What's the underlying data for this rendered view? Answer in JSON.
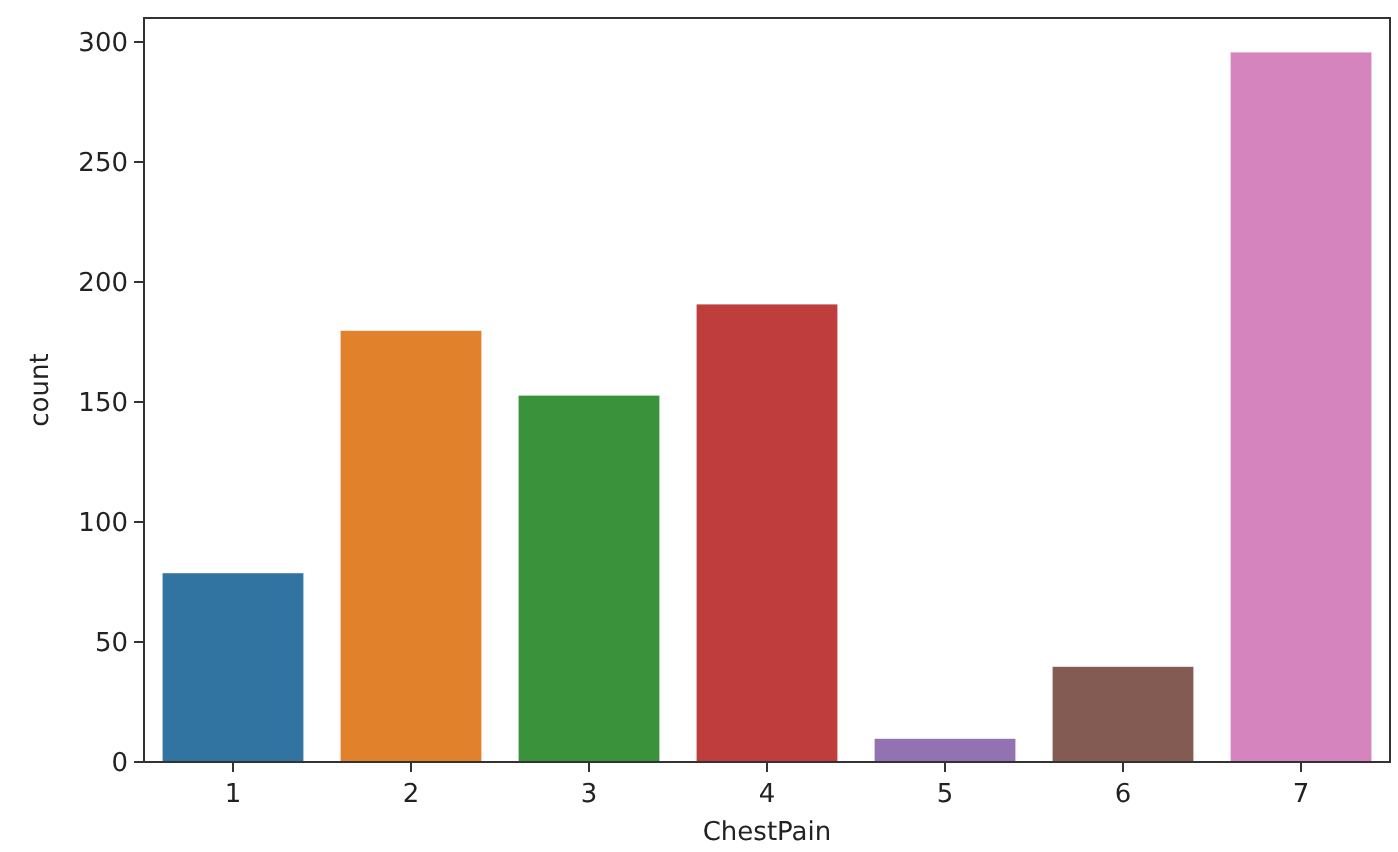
{
  "chart_data": {
    "type": "bar",
    "xlabel": "ChestPain",
    "ylabel": "count",
    "categories": [
      "1",
      "2",
      "3",
      "4",
      "5",
      "6",
      "7"
    ],
    "values": [
      79,
      180,
      153,
      191,
      10,
      40,
      296
    ],
    "colors": [
      "#3274a1",
      "#e1812c",
      "#3a923a",
      "#c03d3e",
      "#9372b2",
      "#845b53",
      "#d684bd"
    ],
    "ylim": [
      0,
      310
    ],
    "yticks": [
      0,
      50,
      100,
      150,
      200,
      250,
      300
    ],
    "grid": false
  }
}
